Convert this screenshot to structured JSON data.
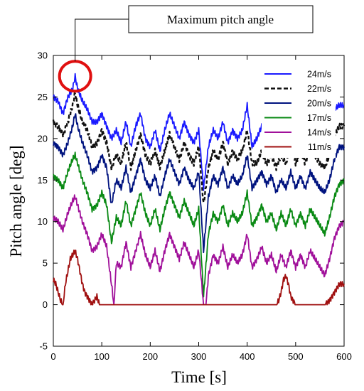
{
  "chart_data": {
    "type": "line",
    "xlabel": "Time [s]",
    "ylabel": "Pitch angle [deg]",
    "xlim": [
      0,
      600
    ],
    "ylim": [
      -5,
      30
    ],
    "xticks": [
      "0",
      "100",
      "200",
      "300",
      "400",
      "500",
      "600"
    ],
    "yticks": [
      "-5",
      "0",
      "5",
      "10",
      "15",
      "20",
      "25",
      "30"
    ],
    "grid": false,
    "legend_position": "top-right",
    "annotation": {
      "text": "Maximum pitch angle",
      "target": {
        "x": 45,
        "y": 27.5
      }
    },
    "series": [
      {
        "name": "24m/s",
        "color": "#1a1aff",
        "dash": false,
        "x": [
          0,
          10,
          20,
          30,
          40,
          45,
          50,
          60,
          70,
          80,
          90,
          100,
          110,
          120,
          130,
          140,
          150,
          160,
          170,
          180,
          190,
          200,
          210,
          220,
          230,
          240,
          250,
          260,
          270,
          280,
          290,
          300,
          310,
          320,
          330,
          340,
          350,
          360,
          370,
          380,
          390,
          400,
          410,
          420,
          430,
          440,
          450,
          460,
          470,
          480,
          490,
          500,
          510,
          520,
          530,
          540,
          550,
          560,
          570,
          580,
          590,
          600
        ],
        "y": [
          25,
          24.5,
          23,
          25,
          26,
          27.5,
          26,
          24.5,
          23.5,
          22,
          22,
          23,
          21.5,
          20,
          21,
          19.5,
          22,
          19,
          21.5,
          23,
          20,
          19,
          21,
          18.5,
          21,
          23,
          21.5,
          20,
          22,
          20.5,
          19.5,
          21,
          14,
          19,
          21,
          20,
          22,
          19.5,
          21,
          20,
          21,
          24,
          19,
          20,
          21.5,
          20,
          21,
          19.5,
          21,
          20,
          22,
          20,
          21.5,
          20,
          22,
          21,
          20,
          19.5,
          21,
          23.5,
          24,
          24
        ]
      },
      {
        "name": "22m/s",
        "color": "#111111",
        "dash": true,
        "x": [
          0,
          10,
          20,
          30,
          40,
          45,
          50,
          60,
          70,
          80,
          90,
          100,
          110,
          120,
          130,
          140,
          150,
          160,
          170,
          180,
          190,
          200,
          210,
          220,
          230,
          240,
          250,
          260,
          270,
          280,
          290,
          300,
          310,
          320,
          330,
          340,
          350,
          360,
          370,
          380,
          390,
          400,
          410,
          420,
          430,
          440,
          450,
          460,
          470,
          480,
          490,
          500,
          510,
          520,
          530,
          540,
          550,
          560,
          570,
          580,
          590,
          600
        ],
        "y": [
          22,
          21.5,
          20.5,
          22,
          24,
          25.5,
          24,
          22,
          21,
          19,
          19.5,
          21,
          19.5,
          16.5,
          18,
          17,
          19.5,
          16.5,
          18.5,
          20.5,
          18,
          17,
          18.5,
          16.5,
          18.5,
          20.5,
          19,
          17.5,
          19.5,
          18,
          17,
          19,
          12,
          16.5,
          18.5,
          17.5,
          19.5,
          17,
          18.5,
          17.5,
          18.5,
          21,
          17,
          17,
          18.5,
          17,
          18,
          16.5,
          18,
          17,
          19,
          17,
          18.5,
          17,
          19,
          18,
          17,
          16.5,
          18,
          20.5,
          21.5,
          21.5
        ]
      },
      {
        "name": "20m/s",
        "color": "#00137f",
        "dash": false,
        "x": [
          0,
          10,
          20,
          30,
          40,
          45,
          50,
          60,
          70,
          80,
          90,
          100,
          110,
          120,
          130,
          140,
          150,
          160,
          170,
          180,
          190,
          200,
          210,
          220,
          230,
          240,
          250,
          260,
          270,
          280,
          290,
          300,
          310,
          320,
          330,
          340,
          350,
          360,
          370,
          380,
          390,
          400,
          410,
          420,
          430,
          440,
          450,
          460,
          470,
          480,
          490,
          500,
          510,
          520,
          530,
          540,
          550,
          560,
          570,
          580,
          590,
          600
        ],
        "y": [
          19.5,
          19,
          18,
          19.5,
          21.5,
          23,
          21.5,
          19.5,
          18,
          16,
          16.5,
          18,
          16.5,
          12,
          15,
          14,
          16.5,
          13.5,
          15.5,
          17.5,
          15,
          14,
          15.5,
          13,
          15.5,
          17.5,
          16,
          14.5,
          16.5,
          15,
          14,
          16,
          6.5,
          13,
          15.5,
          14.5,
          16.5,
          14,
          15.5,
          14.5,
          15.5,
          18,
          14,
          15,
          16,
          14.5,
          15.5,
          13.5,
          15,
          14,
          16,
          14,
          15.5,
          14,
          16,
          15,
          14,
          13.5,
          15,
          17.5,
          19,
          19
        ]
      },
      {
        "name": "17m/s",
        "color": "#0a8a14",
        "dash": false,
        "x": [
          0,
          10,
          20,
          30,
          40,
          45,
          50,
          60,
          70,
          80,
          90,
          100,
          110,
          120,
          130,
          140,
          150,
          160,
          170,
          180,
          190,
          200,
          210,
          220,
          230,
          240,
          250,
          260,
          270,
          280,
          290,
          300,
          310,
          320,
          330,
          340,
          350,
          360,
          370,
          380,
          390,
          400,
          410,
          420,
          430,
          440,
          450,
          460,
          470,
          480,
          490,
          500,
          510,
          520,
          530,
          540,
          550,
          560,
          570,
          580,
          590,
          600
        ],
        "y": [
          15.5,
          15,
          14,
          16,
          17.5,
          18,
          17,
          15,
          13.5,
          11.5,
          12,
          13.5,
          12,
          7.5,
          10.5,
          9.5,
          12.5,
          9.5,
          11.5,
          13.5,
          11,
          9.5,
          11.5,
          9,
          11.5,
          13.5,
          12,
          10.5,
          12.5,
          11,
          9.5,
          11.5,
          1,
          8.5,
          11,
          10,
          12,
          9.5,
          11,
          10,
          11,
          13.5,
          9.5,
          10.5,
          12,
          10,
          11,
          9,
          11,
          9.5,
          11.5,
          9.5,
          11,
          9.5,
          11.5,
          10.5,
          9.5,
          8.5,
          10.5,
          13,
          14.5,
          15
        ]
      },
      {
        "name": "14m/s",
        "color": "#a0109a",
        "dash": false,
        "x": [
          0,
          10,
          20,
          30,
          40,
          45,
          50,
          60,
          70,
          80,
          90,
          100,
          110,
          120,
          125,
          130,
          140,
          150,
          160,
          170,
          180,
          190,
          200,
          210,
          220,
          230,
          240,
          250,
          260,
          270,
          280,
          290,
          300,
          310,
          315,
          320,
          330,
          340,
          350,
          360,
          370,
          380,
          390,
          400,
          410,
          420,
          430,
          440,
          450,
          460,
          470,
          480,
          490,
          500,
          510,
          520,
          530,
          540,
          550,
          560,
          570,
          580,
          590,
          600
        ],
        "y": [
          10.5,
          10,
          9,
          11,
          12.5,
          13,
          12,
          10,
          8.5,
          6.5,
          7,
          8.5,
          7,
          2.5,
          0,
          5,
          4.5,
          7.5,
          4.5,
          6.5,
          8.5,
          6,
          4.5,
          6.5,
          4,
          6.5,
          8.5,
          7,
          5.5,
          7.5,
          6,
          4.5,
          6.5,
          0,
          0,
          3.5,
          6,
          5,
          7,
          4.5,
          6,
          5,
          6,
          8.5,
          4.5,
          5.5,
          7,
          5,
          6,
          4,
          6,
          4.5,
          6.5,
          4.5,
          6,
          4.5,
          6.5,
          5.5,
          4.5,
          3.5,
          5.5,
          8,
          9.5,
          10
        ]
      },
      {
        "name": "11m/s",
        "color": "#a01010",
        "dash": false,
        "x": [
          0,
          5,
          10,
          15,
          20,
          25,
          30,
          35,
          40,
          45,
          50,
          55,
          60,
          65,
          70,
          75,
          80,
          85,
          90,
          95,
          100,
          150,
          200,
          250,
          300,
          350,
          400,
          450,
          460,
          465,
          470,
          475,
          480,
          485,
          490,
          500,
          550,
          560,
          570,
          575,
          580,
          585,
          590,
          595,
          600
        ],
        "y": [
          3,
          2.5,
          1.5,
          0.5,
          0,
          2.5,
          4,
          5.5,
          6,
          6.5,
          5.5,
          4,
          2.5,
          1.5,
          1,
          0.5,
          0,
          0.5,
          1,
          0,
          0,
          0,
          0,
          0,
          0,
          0,
          0,
          0,
          0,
          0.5,
          1.5,
          3,
          3.5,
          2.5,
          1,
          0,
          0,
          0,
          0.5,
          1,
          1.5,
          2,
          2.5,
          2.5,
          2.5
        ]
      }
    ]
  }
}
